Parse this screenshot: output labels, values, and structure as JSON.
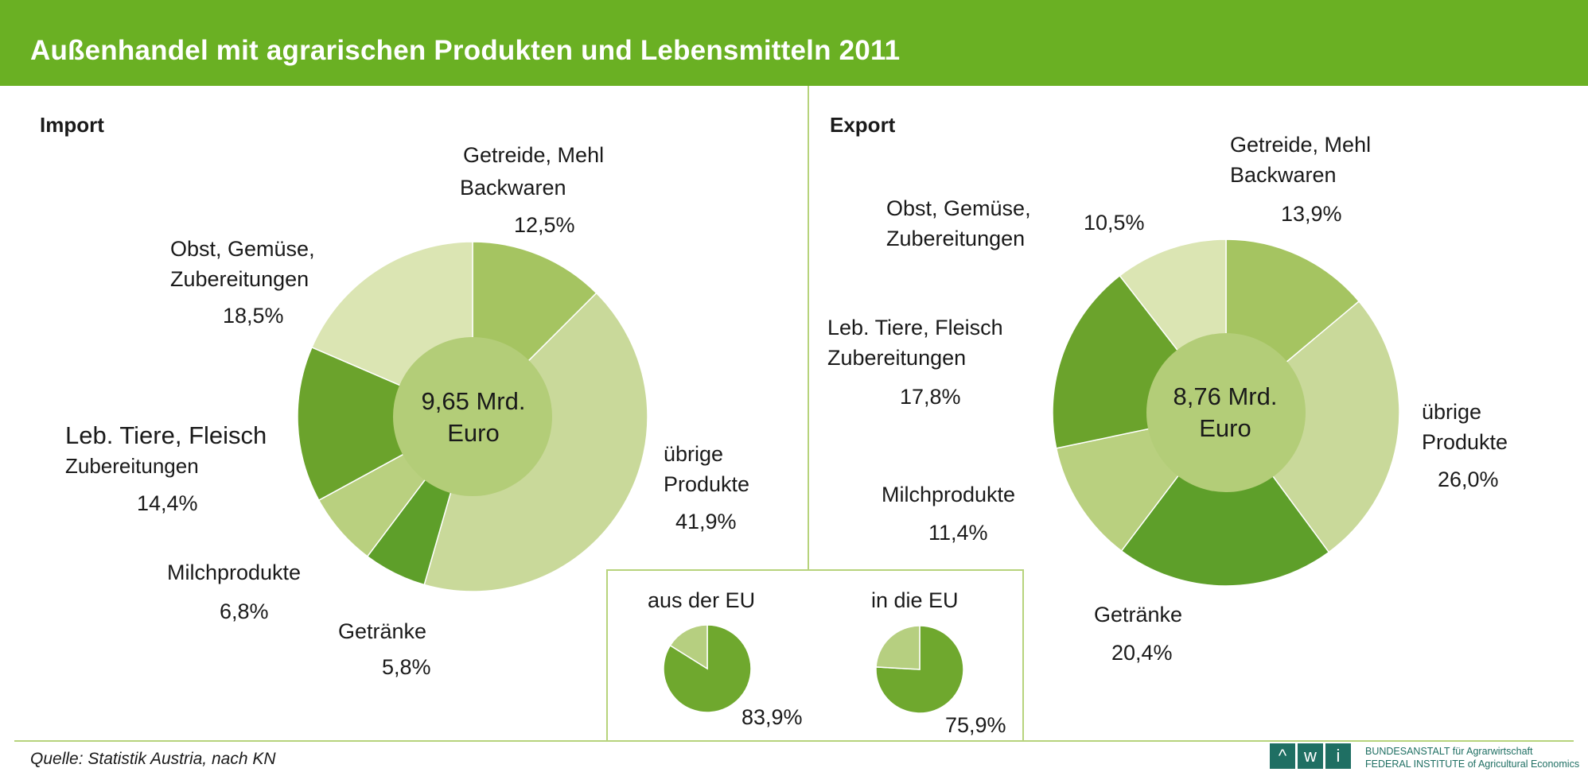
{
  "title": "Außenhandel mit agrarischen Produkten und Lebensmitteln 2011",
  "colors": {
    "header": "#6ab023",
    "getreide": "#a5c461",
    "uebrige": "#c9d99a",
    "getraenke": "#5e9f2a",
    "milch": "#b9d07f",
    "fleisch": "#6ba32c",
    "obst": "#dbe5b3",
    "center": "#b3cd78",
    "eu": "#6fa82e",
    "noneu": "#b6cf80"
  },
  "chart_data": [
    {
      "type": "pie",
      "section": "Import",
      "center_label": [
        "9,65 Mrd.",
        "Euro"
      ],
      "slices": [
        {
          "key": "getreide",
          "label": [
            "Getreide, Mehl",
            "Backwaren"
          ],
          "value": 12.5,
          "pct_label": "12,5%"
        },
        {
          "key": "uebrige",
          "label": [
            "übrige",
            "Produkte"
          ],
          "value": 41.9,
          "pct_label": "41,9%"
        },
        {
          "key": "getraenke",
          "label": [
            "Getränke"
          ],
          "value": 5.8,
          "pct_label": "5,8%"
        },
        {
          "key": "milch",
          "label": [
            "Milchprodukte"
          ],
          "value": 6.8,
          "pct_label": "6,8%"
        },
        {
          "key": "fleisch",
          "label": [
            "Leb. Tiere, Fleisch",
            "Zubereitungen"
          ],
          "value": 14.4,
          "pct_label": "14,4%"
        },
        {
          "key": "obst",
          "label": [
            "Obst, Gemüse,",
            "Zubereitungen"
          ],
          "value": 18.5,
          "pct_label": "18,5%"
        }
      ]
    },
    {
      "type": "pie",
      "section": "Export",
      "center_label": [
        "8,76 Mrd.",
        "Euro"
      ],
      "slices": [
        {
          "key": "getreide",
          "label": [
            "Getreide, Mehl",
            "Backwaren"
          ],
          "value": 13.9,
          "pct_label": "13,9%"
        },
        {
          "key": "uebrige",
          "label": [
            "übrige",
            "Produkte"
          ],
          "value": 26.0,
          "pct_label": "26,0%"
        },
        {
          "key": "getraenke",
          "label": [
            "Getränke"
          ],
          "value": 20.4,
          "pct_label": "20,4%"
        },
        {
          "key": "milch",
          "label": [
            "Milchprodukte"
          ],
          "value": 11.4,
          "pct_label": "11,4%"
        },
        {
          "key": "fleisch",
          "label": [
            "Leb. Tiere, Fleisch",
            "Zubereitungen"
          ],
          "value": 17.8,
          "pct_label": "17,8%"
        },
        {
          "key": "obst",
          "label": [
            "Obst, Gemüse,",
            "Zubereitungen"
          ],
          "value": 10.5,
          "pct_label": "10,5%"
        }
      ]
    },
    {
      "type": "pie",
      "title": "aus der EU",
      "eu_share": 83.9,
      "pct_label": "83,9%"
    },
    {
      "type": "pie",
      "title": "in die EU",
      "eu_share": 75.9,
      "pct_label": "75,9%"
    }
  ],
  "source": "Quelle: Statistik Austria, nach KN",
  "logo": {
    "letters": [
      "^",
      "w",
      "i"
    ],
    "line1_a": "BUNDESANSTALT",
    "line1_b": "für Agrarwirtschaft",
    "line2_a": "FEDERAL INSTITUTE",
    "line2_b": "of Agricultural Economics"
  }
}
